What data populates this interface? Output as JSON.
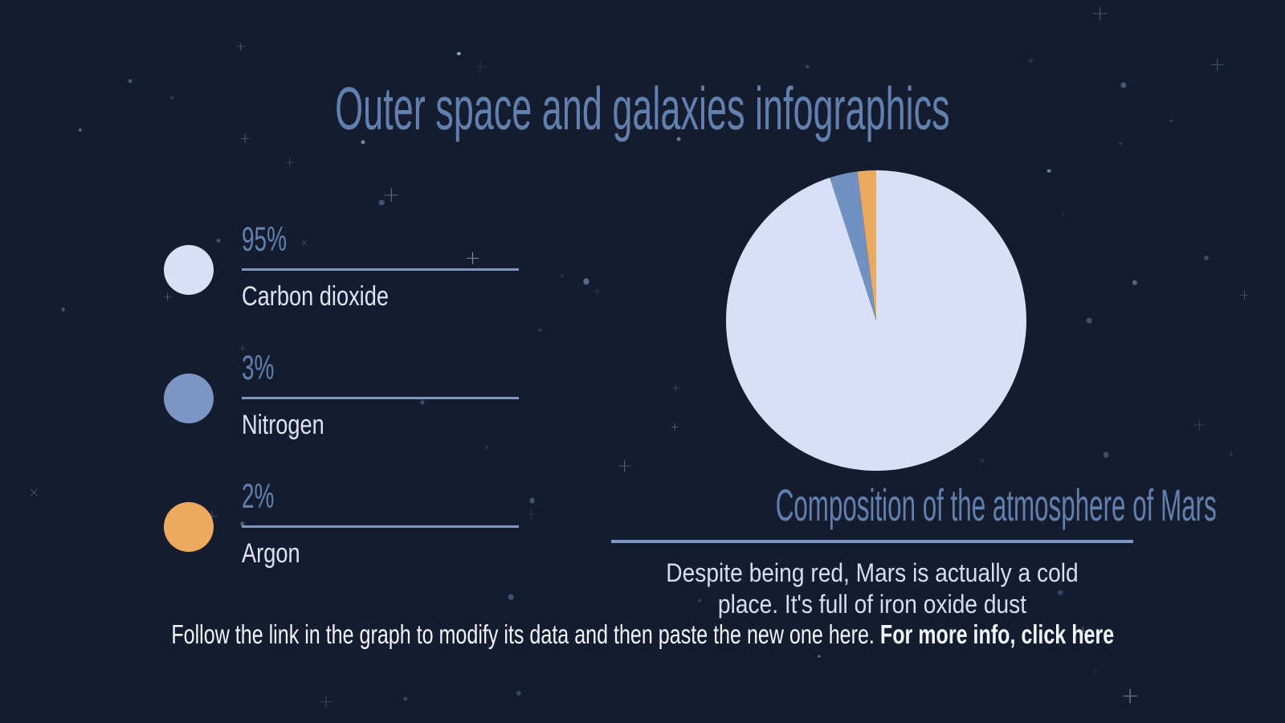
{
  "page": {
    "title": "Outer space and galaxies infographics",
    "background_color": "#151c2f",
    "accent_color": "#7e97c3",
    "heading_color": "#6280ae"
  },
  "legend": {
    "items": [
      {
        "percent": "95%",
        "label": "Carbon dioxide",
        "color": "#d8dff7"
      },
      {
        "percent": "3%",
        "label": "Nitrogen",
        "color": "#7b96c5"
      },
      {
        "percent": "2%",
        "label": "Argon",
        "color": "#edaa5f"
      }
    ]
  },
  "chart_data": {
    "type": "pie",
    "title": "Composition of the atmosphere of Mars",
    "categories": [
      "Carbon dioxide",
      "Nitrogen",
      "Argon"
    ],
    "values": [
      95,
      3,
      2
    ],
    "unit": "%",
    "colors": [
      "#d8dff7",
      "#7191c3",
      "#edaa5f"
    ],
    "start_angle_deg": 0,
    "direction": "clockwise",
    "legend_position": "left",
    "labels_on_chart": false
  },
  "chart_section": {
    "heading": "Composition of the atmosphere of Mars",
    "description": "Despite being red, Mars is actually a cold place. It's full of iron oxide dust"
  },
  "footer": {
    "text": "Follow the link in the graph to modify its data and then paste the new one here.",
    "link_text": "For more info, click here"
  }
}
